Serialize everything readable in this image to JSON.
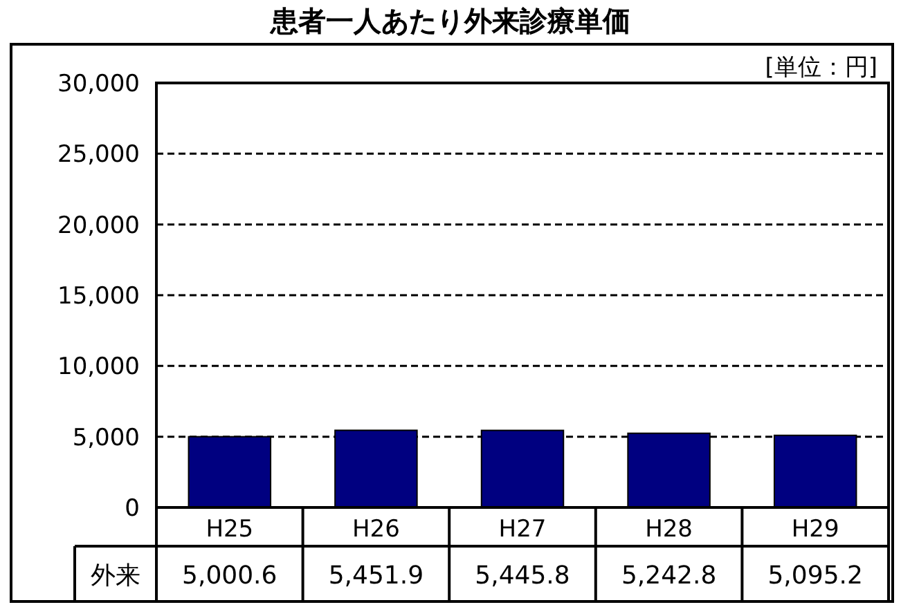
{
  "chart_data": {
    "type": "bar",
    "title": "患者一人あたり外来診療単価",
    "annotations": [
      "[単位：円]"
    ],
    "categories": [
      "H25",
      "H26",
      "H27",
      "H28",
      "H29"
    ],
    "series": [
      {
        "name": "外来",
        "color": "#000080",
        "values": [
          5000.6,
          5451.9,
          5445.8,
          5242.8,
          5095.2
        ],
        "value_labels": [
          "5,000.6",
          "5,451.9",
          "5,445.8",
          "5,242.8",
          "5,095.2"
        ]
      }
    ],
    "ylim": [
      0,
      30000
    ],
    "yticks": [
      0,
      {
        "value": 5000,
        "label": "5,000"
      },
      {
        "value": 10000,
        "label": "10,000"
      },
      {
        "value": 15000,
        "label": "15,000"
      },
      {
        "value": 20000,
        "label": "20,000"
      },
      {
        "value": 25000,
        "label": "25,000"
      },
      {
        "value": 30000,
        "label": "30,000"
      }
    ],
    "grid": "y"
  }
}
